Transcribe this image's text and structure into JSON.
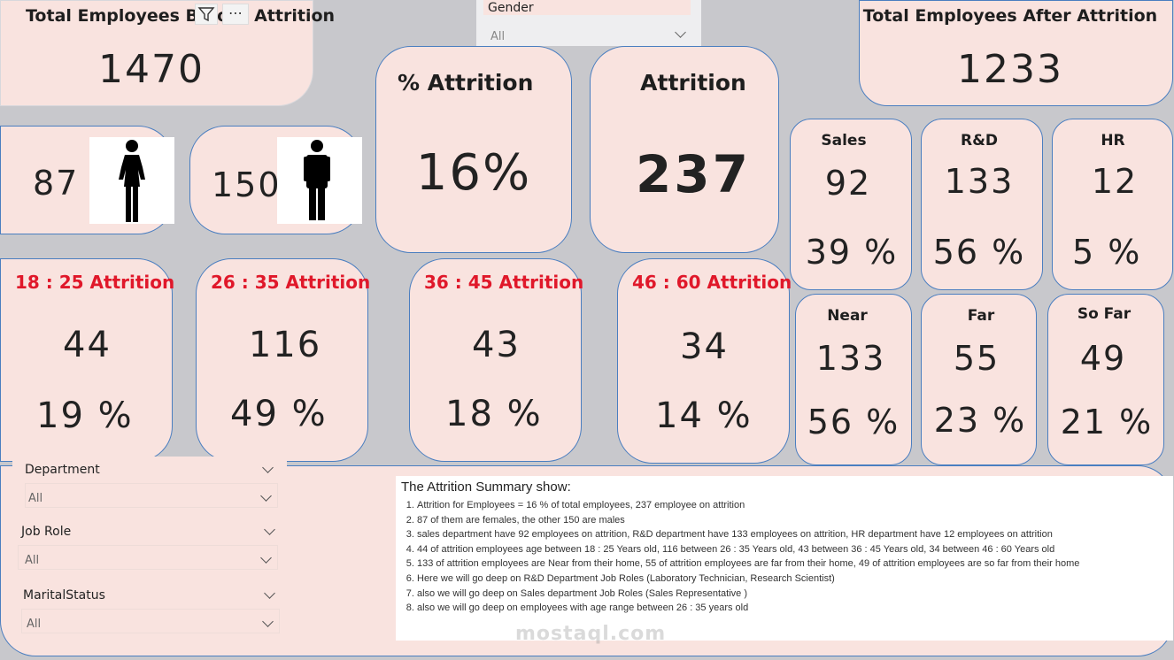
{
  "total_before": {
    "title": "Total Employees Before Attrition",
    "value": "1470"
  },
  "total_after": {
    "title": "Total Employees After Attrition",
    "value": "1233"
  },
  "gender_slicer": {
    "label": "Gender",
    "value": "All"
  },
  "pct_attrition": {
    "title": "% Attrition",
    "value": "16%"
  },
  "attrition": {
    "title": "Attrition",
    "value": "237"
  },
  "female": {
    "value": "87",
    "icon": "female-person-icon"
  },
  "male": {
    "value": "150",
    "icon": "male-person-icon"
  },
  "departments": [
    {
      "name": "Sales",
      "count": "92",
      "pct": "39 %"
    },
    {
      "name": "R&D",
      "count": "133",
      "pct": "56 %"
    },
    {
      "name": "HR",
      "count": "12",
      "pct": "5 %"
    }
  ],
  "distance": [
    {
      "name": "Near",
      "count": "133",
      "pct": "56 %"
    },
    {
      "name": "Far",
      "count": "55",
      "pct": "23 %"
    },
    {
      "name": "So Far",
      "count": "49",
      "pct": "21 %"
    }
  ],
  "age_groups": [
    {
      "title": "18 : 25 Attrition",
      "count": "44",
      "pct": "19 %"
    },
    {
      "title": "26 : 35 Attrition",
      "count": "116",
      "pct": "49 %"
    },
    {
      "title": "36 : 45 Attrition",
      "count": "43",
      "pct": "18 %"
    },
    {
      "title": "46 : 60 Attrition",
      "count": "34",
      "pct": "14 %"
    }
  ],
  "slicers": [
    {
      "label": "Department",
      "value": "All"
    },
    {
      "label": "Job Role",
      "value": "All"
    },
    {
      "label": "MaritalStatus",
      "value": "All"
    }
  ],
  "summary": {
    "heading": "The Attrition Summary show:",
    "items": [
      "Attrition for Employees = 16 % of total employees, 237 employee on attrition",
      "87 of them are females, the other 150 are males",
      "sales department have 92 employees on attrition, R&D department have 133 employees on attrition, HR department have 12 employees on attrition",
      "44 of attrition employees age between 18 : 25 Years old, 116 between 26 : 35 Years old, 43 between 36 : 45 Years old, 34 between 46 : 60 Years old",
      "133 of attrition employees are Near from their home, 55 of attrition employees are far from their home, 49 of attrition employees are so far from their home",
      "Here we will go deep on R&D Department Job Roles (Laboratory Technician, Research Scientist)",
      "also we will go deep on Sales department Job Roles (Sales Representative )",
      "also we will go deep on employees with age range between 26 : 35 years old"
    ]
  },
  "visual_header": {
    "filter_icon": "filter-icon",
    "more_icon": "more-options-icon"
  },
  "watermark": "mostaql.com"
}
